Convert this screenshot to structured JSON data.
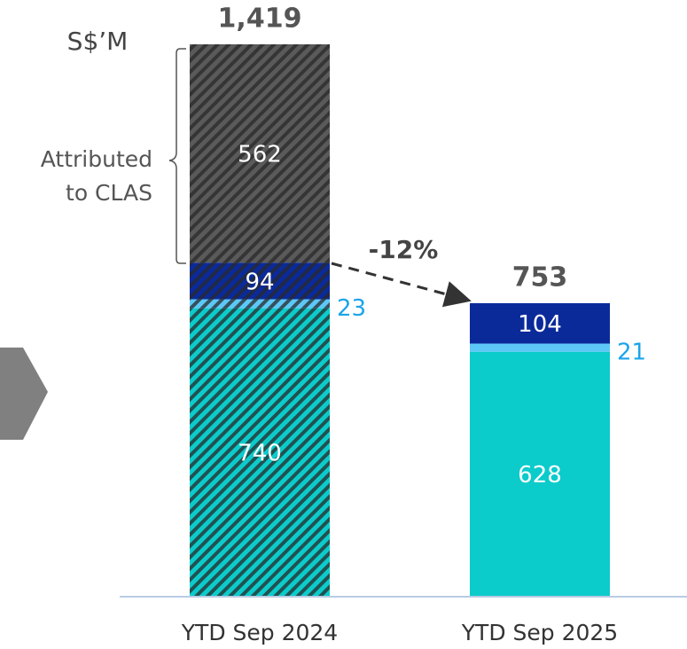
{
  "chart_data": {
    "type": "stacked_bar",
    "unit_label": "S$’M",
    "categories": [
      "YTD Sep 2024",
      "YTD Sep 2025"
    ],
    "hatched": [
      true,
      false
    ],
    "ylim": [
      0,
      1419
    ],
    "series": [
      {
        "color": "#0ccbcb",
        "label_color": "#ffffff",
        "label_position": "inside",
        "values": [
          740,
          628
        ]
      },
      {
        "color": "#5cc8f7",
        "label_color": "#1ba4ea",
        "label_position": "outside",
        "values": [
          23,
          21
        ]
      },
      {
        "color": "#0b2a9a",
        "label_color": "#ffffff",
        "label_position": "inside",
        "values": [
          94,
          104
        ]
      },
      {
        "color": "#5a5a5a",
        "label_color": "#ffffff",
        "label_position": "inside",
        "values": [
          562,
          null
        ]
      }
    ],
    "totals": [
      1419,
      753
    ],
    "total_labels": [
      "1,419",
      "753"
    ],
    "annotations": {
      "bracket_lines": [
        "Attributed",
        "to CLAS"
      ],
      "change": "-12%"
    }
  }
}
